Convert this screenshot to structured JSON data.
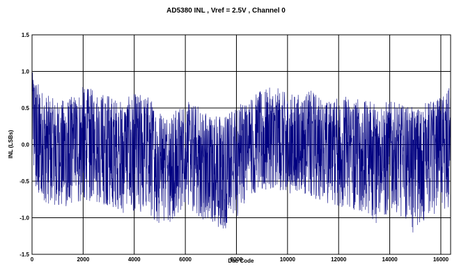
{
  "chart_data": {
    "type": "line",
    "title": "AD5380 INL , Vref = 2.5V , Channel 0",
    "xlabel": "Dac Code",
    "ylabel": "INL (LSBs)",
    "xlim": [
      0,
      16383
    ],
    "ylim": [
      -1.5,
      1.5
    ],
    "x_ticks": [
      "0",
      "2000",
      "4000",
      "6000",
      "8000",
      "10000",
      "12000",
      "14000",
      "16000"
    ],
    "y_ticks": [
      "1.5",
      "1.0",
      "0.5",
      "0.0",
      "-0.5",
      "-1.0",
      "-1.5"
    ],
    "grid": true,
    "series": [
      {
        "color": "#000080",
        "x": [
          0,
          250,
          500,
          1000,
          1500,
          2000,
          2500,
          3000,
          3500,
          4000,
          4500,
          5000,
          5500,
          6000,
          6500,
          7000,
          7500,
          8000,
          8500,
          9000,
          9500,
          10000,
          10500,
          11000,
          11500,
          12000,
          12500,
          13000,
          13500,
          14000,
          14500,
          15000,
          15500,
          16000,
          16383
        ],
        "y": [
          0.6,
          0.15,
          0.0,
          -0.02,
          0.0,
          0.05,
          0.02,
          -0.05,
          -0.08,
          -0.02,
          -0.05,
          -0.25,
          -0.22,
          -0.12,
          -0.18,
          -0.3,
          -0.35,
          -0.15,
          0.05,
          0.08,
          0.1,
          0.05,
          0.05,
          0.0,
          -0.05,
          0.0,
          -0.05,
          -0.1,
          -0.1,
          -0.08,
          -0.12,
          -0.15,
          -0.1,
          -0.05,
          -0.05
        ],
        "upper": [
          1.0,
          0.85,
          0.7,
          0.6,
          0.65,
          0.8,
          0.75,
          0.7,
          0.6,
          0.7,
          0.7,
          0.5,
          0.45,
          0.6,
          0.55,
          0.45,
          0.4,
          0.55,
          0.65,
          0.75,
          0.8,
          0.7,
          0.7,
          0.75,
          0.6,
          0.65,
          0.7,
          0.6,
          0.6,
          0.6,
          0.55,
          0.5,
          0.6,
          0.65,
          0.8
        ],
        "lower": [
          -0.5,
          -0.7,
          -0.8,
          -0.85,
          -0.85,
          -0.75,
          -0.8,
          -0.85,
          -0.95,
          -0.9,
          -0.95,
          -1.1,
          -1.05,
          -0.9,
          -1.0,
          -1.1,
          -1.2,
          -1.0,
          -0.7,
          -0.65,
          -0.6,
          -0.7,
          -0.7,
          -0.75,
          -0.8,
          -0.85,
          -0.9,
          -0.95,
          -1.1,
          -0.95,
          -1.0,
          -1.25,
          -1.0,
          -0.9,
          -0.85
        ]
      }
    ]
  }
}
